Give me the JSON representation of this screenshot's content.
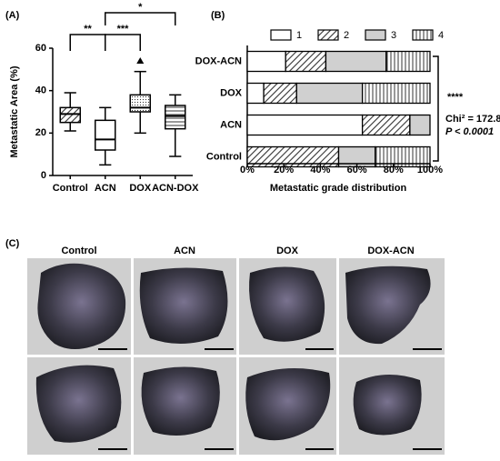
{
  "chart_data": [
    {
      "type": "box",
      "panel_label": "(A)",
      "y_label": "Metastatic Area (%)",
      "categories": [
        "Control",
        "ACN",
        "DOX",
        "ACN-DOX"
      ],
      "boxes": [
        {
          "whisker_low": 21,
          "q1": 25,
          "median": 29,
          "q3": 32,
          "whisker_high": 39,
          "outliers": []
        },
        {
          "whisker_low": 5,
          "q1": 12,
          "median": 17,
          "q3": 26,
          "whisker_high": 32,
          "outliers": []
        },
        {
          "whisker_low": 20,
          "q1": 30,
          "median": 32,
          "q3": 38,
          "whisker_high": 49,
          "outliers": [
            54
          ]
        },
        {
          "whisker_low": 9,
          "q1": 22,
          "median": 28,
          "q3": 33,
          "whisker_high": 38,
          "outliers": []
        }
      ],
      "fill_patterns": [
        "diagonal",
        "none",
        "dots",
        "horizontal"
      ],
      "ylim": [
        0,
        60
      ],
      "yticks": [
        0,
        20,
        40,
        60
      ],
      "annotations": [
        "**",
        "***",
        "*"
      ]
    },
    {
      "type": "bar",
      "orientation": "horizontal",
      "stacked": true,
      "panel_label": "(B)",
      "x_label": "Metastatic grade distribution",
      "categories": [
        "DOX-ACN",
        "DOX",
        "ACN",
        "Control"
      ],
      "series": [
        {
          "name": "1",
          "pattern": "none",
          "values": [
            21,
            9,
            63,
            0
          ]
        },
        {
          "name": "2",
          "pattern": "diagonal",
          "values": [
            22,
            18,
            26,
            50
          ]
        },
        {
          "name": "3",
          "pattern": "gray",
          "values": [
            33,
            36,
            11,
            20
          ]
        },
        {
          "name": "4",
          "pattern": "vertical",
          "values": [
            24,
            37,
            0,
            30
          ]
        }
      ],
      "xlim": [
        0,
        100
      ],
      "xticks": [
        {
          "value": 0,
          "label": "0%"
        },
        {
          "value": 20,
          "label": "20%"
        },
        {
          "value": 40,
          "label": "40%"
        },
        {
          "value": 60,
          "label": "60%"
        },
        {
          "value": 80,
          "label": "80%"
        },
        {
          "value": 100,
          "label": "100%"
        }
      ],
      "legend": "top",
      "annotations": [
        "****",
        "Chi² = 172.8",
        "P < 0.0001"
      ]
    }
  ],
  "panel_c": {
    "panel_label": "(C)",
    "columns": [
      "Control",
      "ACN",
      "DOX",
      "DOX-ACN"
    ]
  }
}
